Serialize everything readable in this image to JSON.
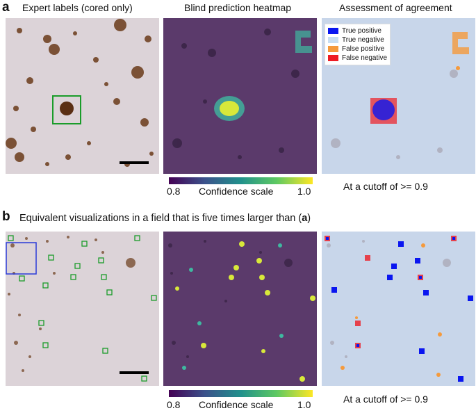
{
  "panel_a": {
    "letter": "a",
    "titles": {
      "expert": "Expert labels (cored only)",
      "heatmap": "Blind prediction heatmap",
      "assessment": "Assessment of agreement"
    },
    "legend": [
      {
        "label": "True positive",
        "color": "#0a16f0"
      },
      {
        "label": "True negative",
        "color": "#c8def2"
      },
      {
        "label": "False positive",
        "color": "#f59a3c"
      },
      {
        "label": "False negative",
        "color": "#ee1c24"
      }
    ],
    "colorbar": {
      "min": "0.8",
      "max": "1.0",
      "label": "Confidence scale"
    },
    "cutoff": "At a cutoff of >= 0.9"
  },
  "panel_b": {
    "letter": "b",
    "subtitle_prefix": "Equivalent visualizations in a field that is five times larger than (",
    "subtitle_ref": "a",
    "subtitle_suffix": ")",
    "colorbar": {
      "min": "0.8",
      "max": "1.0",
      "label": "Confidence scale"
    },
    "cutoff": "At a cutoff of >= 0.9"
  },
  "colors": {
    "tissue_bg": "#dcd3d8",
    "plaque": "#6b3b1a",
    "expert_box": "#1a9c2a",
    "heatmap_bg": "#5b3a6b",
    "assessment_bg": "#c8d6ea",
    "field_box": "#2a3ad8",
    "scale_bar": "#000000"
  }
}
